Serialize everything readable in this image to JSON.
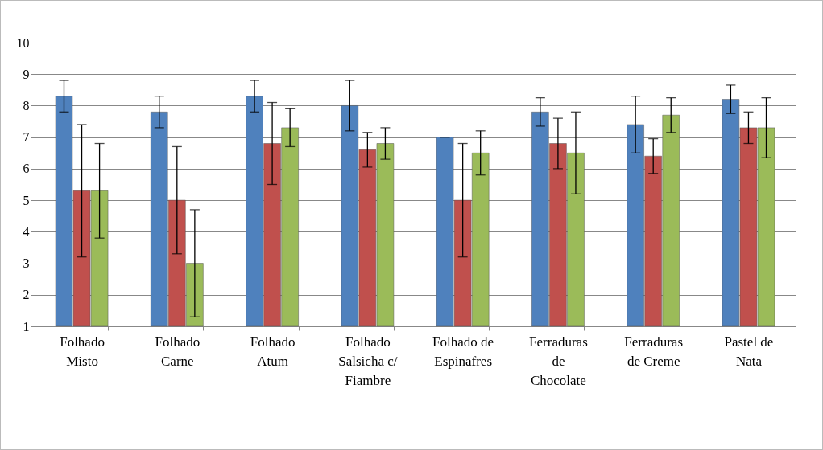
{
  "chart_data": {
    "type": "bar",
    "categories": [
      "Folhado Misto",
      "Folhado Carne",
      "Folhado Atum",
      "Folhado Salsicha c/ Fiambre",
      "Folhado de Espinafres",
      "Ferraduras de Chocolate",
      "Ferraduras de Creme",
      "Pastel de Nata"
    ],
    "series": [
      {
        "color": "#4f81bd",
        "values": [
          8.3,
          7.8,
          8.3,
          8.0,
          7.0,
          7.8,
          7.4,
          8.2
        ],
        "errors": [
          0.5,
          0.5,
          0.5,
          0.8,
          0,
          0.45,
          0.9,
          0.45
        ]
      },
      {
        "color": "#c0504d",
        "values": [
          5.3,
          5.0,
          6.8,
          6.6,
          5.0,
          6.8,
          6.4,
          7.3
        ],
        "errors": [
          2.1,
          1.7,
          1.3,
          0.55,
          1.8,
          0.8,
          0.55,
          0.5
        ]
      },
      {
        "color": "#9bbb59",
        "values": [
          5.3,
          3.0,
          7.3,
          6.8,
          6.5,
          6.5,
          7.7,
          7.3
        ],
        "errors": [
          1.5,
          1.7,
          0.6,
          0.5,
          0.7,
          1.3,
          0.55,
          0.95
        ]
      }
    ],
    "ylim": [
      1,
      10
    ],
    "yticks": [
      1,
      2,
      3,
      4,
      5,
      6,
      7,
      8,
      9,
      10
    ],
    "grid": "y",
    "legend": false
  }
}
